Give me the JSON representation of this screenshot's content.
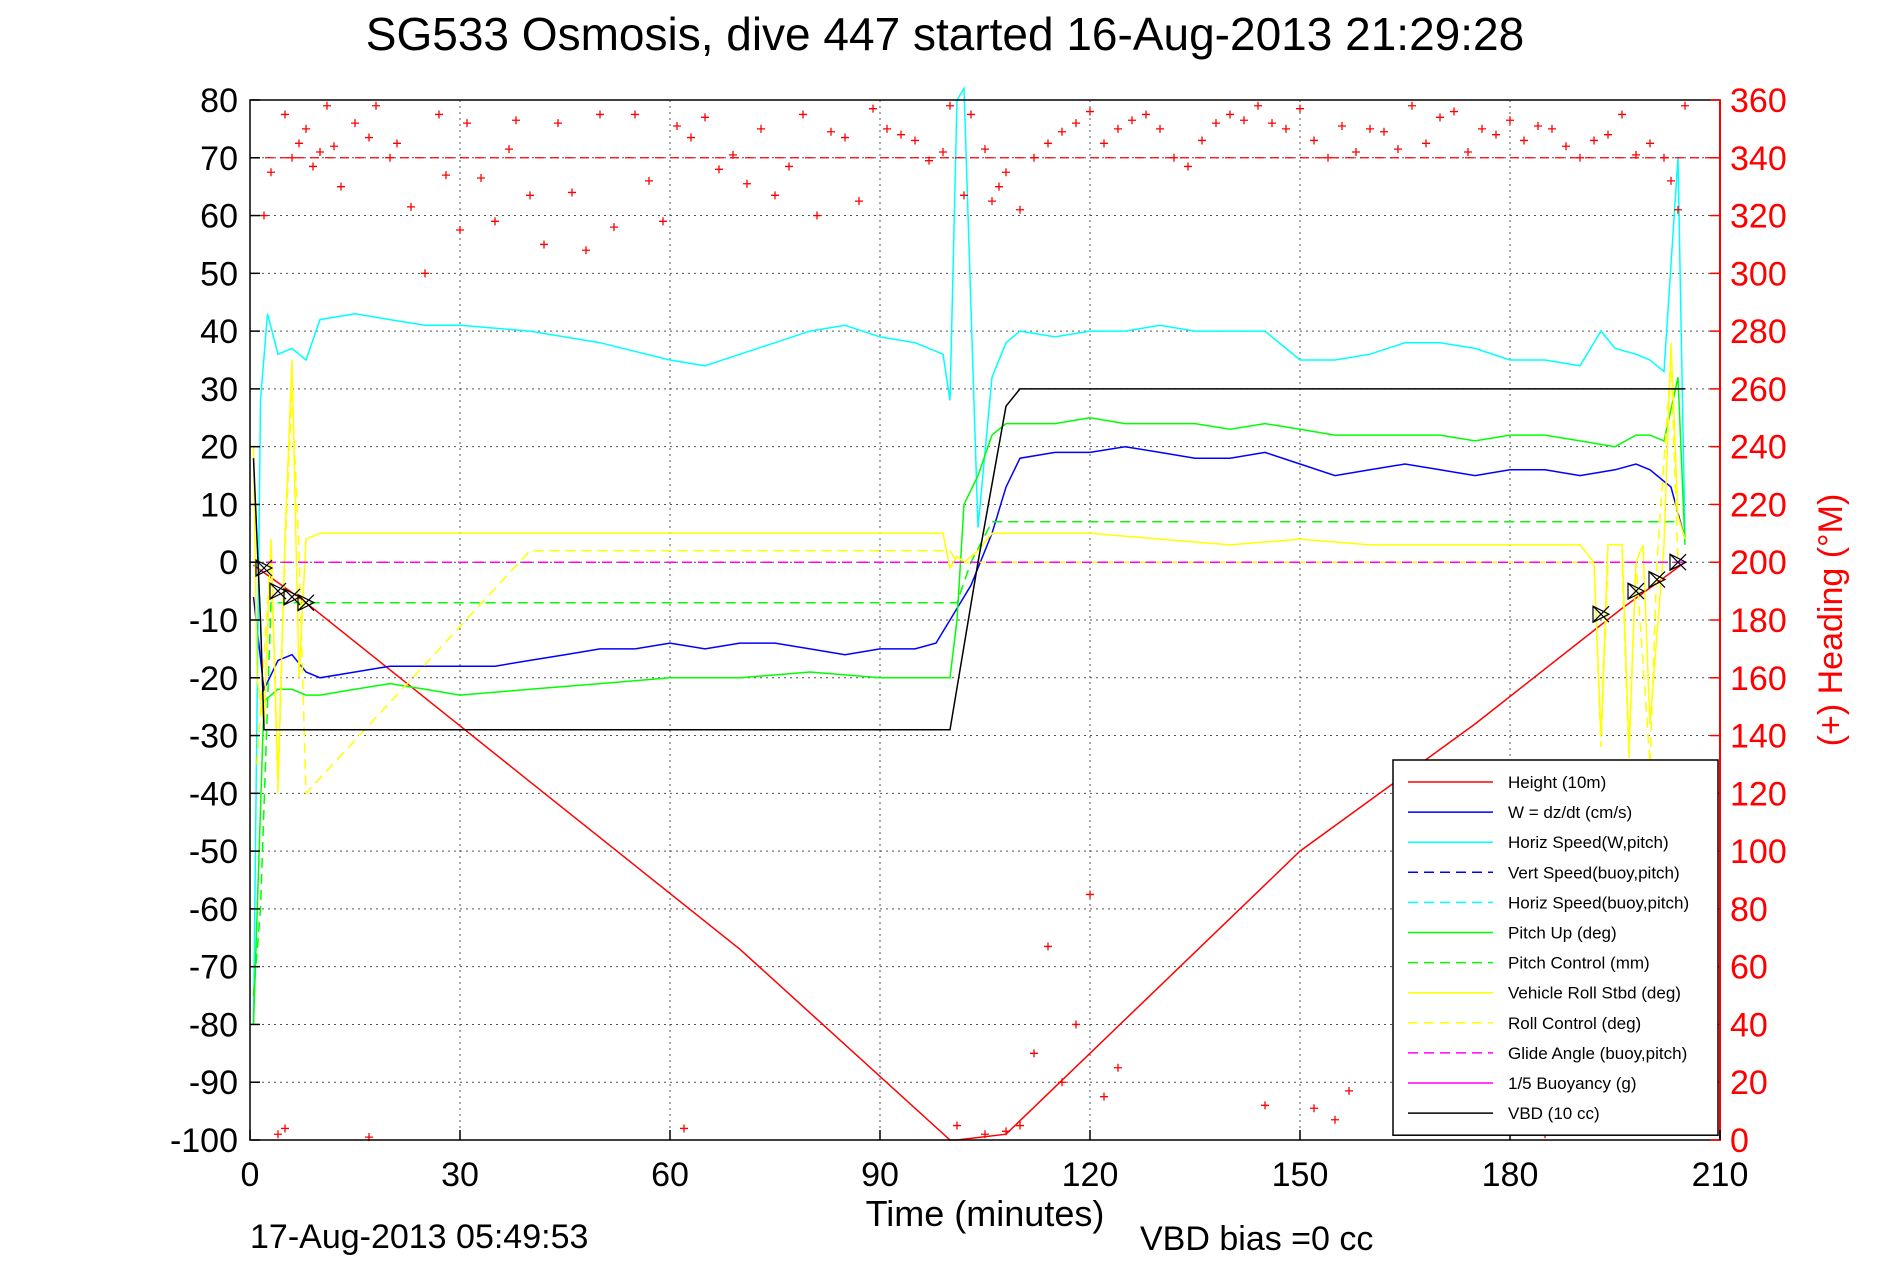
{
  "chart_data": {
    "type": "line",
    "title": "SG533 Osmosis, dive 447 started 16-Aug-2013 21:29:28",
    "xlabel": "Time (minutes)",
    "ylabel_right": "(+) Heading (°M)",
    "footer_left": "17-Aug-2013 05:49:53",
    "footer_right": "VBD bias =0 cc",
    "xlim": [
      0,
      210
    ],
    "ylim": [
      -100,
      80
    ],
    "ylim_right": [
      0,
      360
    ],
    "x_ticks": [
      "0",
      "30",
      "60",
      "90",
      "120",
      "150",
      "180",
      "210"
    ],
    "y_ticks": [
      "-100",
      "-90",
      "-80",
      "-70",
      "-60",
      "-50",
      "-40",
      "-30",
      "-20",
      "-10",
      "0",
      "10",
      "20",
      "30",
      "40",
      "50",
      "60",
      "70",
      "80"
    ],
    "y_right_ticks": [
      "0",
      "20",
      "40",
      "60",
      "80",
      "100",
      "120",
      "140",
      "160",
      "180",
      "200",
      "220",
      "240",
      "260",
      "280",
      "300",
      "320",
      "340",
      "360"
    ],
    "grid": true,
    "legend_position": "lower-right",
    "colors": {
      "right_axis": "#ff0000",
      "grid": "#555555"
    },
    "series": [
      {
        "name": "Height (10m)",
        "color": "#ff0000",
        "style": "solid",
        "x": [
          0.5,
          8,
          40,
          70,
          100,
          101,
          108,
          150,
          175,
          196,
          205
        ],
        "y": [
          -0.5,
          -7,
          -38,
          -67,
          -100,
          -100,
          -99,
          -50,
          -28,
          -8,
          0
        ]
      },
      {
        "name": "W = dz/dt (cm/s)",
        "color": "#0000ff",
        "style": "solid",
        "x": [
          0.5,
          2,
          4,
          6,
          8,
          10,
          15,
          20,
          25,
          30,
          35,
          40,
          45,
          50,
          55,
          60,
          65,
          70,
          75,
          80,
          85,
          90,
          95,
          98,
          100,
          103,
          106,
          108,
          110,
          115,
          120,
          125,
          130,
          135,
          140,
          145,
          150,
          155,
          160,
          165,
          170,
          175,
          180,
          185,
          190,
          195,
          198,
          200,
          203,
          205
        ],
        "y": [
          -6,
          -22,
          -17,
          -16,
          -19,
          -20,
          -19,
          -18,
          -18,
          -18,
          -18,
          -17,
          -16,
          -15,
          -15,
          -14,
          -15,
          -14,
          -14,
          -15,
          -16,
          -15,
          -15,
          -14,
          -10,
          -4,
          5,
          13,
          18,
          19,
          19,
          20,
          19,
          18,
          18,
          19,
          17,
          15,
          16,
          17,
          16,
          15,
          16,
          16,
          15,
          16,
          17,
          16,
          13,
          4
        ]
      },
      {
        "name": "Horiz Speed(W,pitch)",
        "color": "#00ffff",
        "style": "solid",
        "x": [
          0.5,
          1.5,
          2.5,
          4,
          6,
          8,
          10,
          15,
          20,
          25,
          30,
          40,
          50,
          60,
          65,
          70,
          75,
          80,
          85,
          90,
          95,
          99,
          100,
          101,
          102,
          104,
          106,
          108,
          110,
          115,
          120,
          125,
          130,
          135,
          140,
          145,
          150,
          155,
          160,
          165,
          170,
          175,
          180,
          185,
          190,
          193,
          195,
          198,
          200,
          202,
          204,
          205
        ],
        "y": [
          -80,
          28,
          43,
          36,
          37,
          35,
          42,
          43,
          42,
          41,
          41,
          40,
          38,
          35,
          34,
          36,
          38,
          40,
          41,
          39,
          38,
          36,
          28,
          80,
          82,
          6,
          32,
          38,
          40,
          39,
          40,
          40,
          41,
          40,
          40,
          40,
          35,
          35,
          36,
          38,
          38,
          37,
          35,
          35,
          34,
          40,
          37,
          36,
          35,
          33,
          70,
          4
        ]
      },
      {
        "name": "Vert Speed(buoy,pitch)",
        "color": "#0000ff",
        "style": "dashed",
        "x": [],
        "y": []
      },
      {
        "name": "Horiz Speed(buoy,pitch)",
        "color": "#00ffff",
        "style": "dashed",
        "x": [],
        "y": []
      },
      {
        "name": "Pitch Up (deg)",
        "color": "#00ff00",
        "style": "solid",
        "x": [
          0.5,
          2,
          4,
          6,
          8,
          10,
          15,
          20,
          25,
          30,
          40,
          50,
          60,
          70,
          80,
          90,
          95,
          98,
          100,
          101,
          102,
          104,
          106,
          108,
          110,
          115,
          120,
          125,
          130,
          135,
          140,
          145,
          150,
          155,
          160,
          165,
          170,
          175,
          180,
          185,
          190,
          195,
          198,
          200,
          202,
          204,
          205
        ],
        "y": [
          -80,
          -24,
          -22,
          -22,
          -23,
          -23,
          -22,
          -21,
          -22,
          -23,
          -22,
          -21,
          -20,
          -20,
          -19,
          -20,
          -20,
          -20,
          -20,
          -10,
          10,
          15,
          22,
          24,
          24,
          24,
          25,
          24,
          24,
          24,
          23,
          24,
          23,
          22,
          22,
          22,
          22,
          21,
          22,
          22,
          21,
          20,
          22,
          22,
          21,
          32,
          3
        ]
      },
      {
        "name": "Pitch Control (mm)",
        "color": "#00ff00",
        "style": "dashed",
        "x": [
          0.5,
          1.5,
          3,
          5,
          10,
          20,
          40,
          60,
          80,
          100,
          101,
          103,
          106,
          110,
          130,
          150,
          170,
          190,
          204
        ],
        "y": [
          -75,
          -60,
          -7,
          -7,
          -7,
          -7,
          -7,
          -7,
          -7,
          -7,
          -7,
          0,
          7,
          7,
          7,
          7,
          7,
          7,
          7
        ]
      },
      {
        "name": "Vehicle Roll Stbd (deg)",
        "color": "#ffff00",
        "style": "solid",
        "x": [
          0.5,
          1,
          2,
          3,
          4,
          5,
          6,
          7,
          8,
          10,
          15,
          20,
          30,
          40,
          50,
          60,
          70,
          80,
          90,
          99,
          100,
          101,
          102,
          104,
          106,
          110,
          120,
          130,
          140,
          150,
          160,
          170,
          180,
          190,
          192,
          193,
          194,
          196,
          197,
          198,
          199,
          200,
          202,
          203,
          204,
          205
        ],
        "y": [
          20,
          -20,
          -28,
          4,
          -38,
          4,
          35,
          -20,
          4,
          5,
          5,
          5,
          5,
          5,
          5,
          5,
          5,
          5,
          5,
          5,
          -1,
          1,
          0,
          2,
          5,
          5,
          5,
          4,
          3,
          4,
          3,
          3,
          3,
          3,
          0,
          -30,
          3,
          3,
          -32,
          0,
          3,
          -28,
          3,
          38,
          8,
          4
        ]
      },
      {
        "name": "Roll Control (deg)",
        "color": "#ffff00",
        "style": "dashed",
        "x": [
          1,
          3,
          4,
          5,
          6,
          7,
          8,
          40,
          100,
          101,
          102,
          103,
          150,
          192,
          193,
          194,
          196,
          197,
          198,
          200,
          201,
          203,
          204
        ],
        "y": [
          -35,
          2,
          -40,
          2,
          30,
          2,
          -40,
          2,
          2,
          0,
          0,
          0,
          0,
          0,
          -32,
          0,
          0,
          -34,
          0,
          -35,
          0,
          35,
          0
        ]
      },
      {
        "name": "Glide Angle (buoy,pitch)",
        "color": "#ff00ff",
        "style": "dashed",
        "x": [
          0,
          205
        ],
        "y": [
          0,
          0
        ]
      },
      {
        "name": "1/5 Buoyancy (g)",
        "color": "#ff00ff",
        "style": "solid",
        "x": [],
        "y": []
      },
      {
        "name": "VBD (10 cc)",
        "color": "#000000",
        "style": "solid",
        "x": [
          0.5,
          1.5,
          2,
          5,
          20,
          60,
          98,
          100,
          104,
          108,
          110,
          130,
          205
        ],
        "y": [
          18,
          -10,
          -29,
          -29,
          -29,
          -29,
          -29,
          -29,
          0,
          27,
          30,
          30,
          30
        ]
      }
    ],
    "heading_series": {
      "name": "(+) Heading (°M)",
      "color": "#ff0000",
      "marker": "+",
      "axis": "right",
      "mean_heading": 340,
      "x": [
        2,
        3,
        5,
        6,
        7,
        8,
        9,
        10,
        11,
        12,
        13,
        15,
        17,
        18,
        20,
        21,
        23,
        25,
        27,
        28,
        30,
        31,
        33,
        35,
        37,
        38,
        40,
        42,
        44,
        46,
        48,
        50,
        52,
        55,
        57,
        59,
        61,
        63,
        65,
        67,
        69,
        71,
        73,
        75,
        77,
        79,
        81,
        83,
        85,
        87,
        89,
        91,
        93,
        95,
        97,
        99,
        100,
        102,
        103,
        105,
        106,
        107,
        108,
        110,
        112,
        114,
        116,
        118,
        120,
        122,
        124,
        126,
        128,
        130,
        132,
        134,
        136,
        138,
        140,
        142,
        144,
        146,
        148,
        150,
        152,
        154,
        156,
        158,
        160,
        162,
        164,
        166,
        168,
        170,
        172,
        174,
        176,
        178,
        180,
        182,
        184,
        186,
        188,
        190,
        192,
        194,
        196,
        198,
        200,
        202,
        203,
        204,
        205,
        101,
        105,
        108,
        110,
        112,
        114,
        116,
        118,
        120,
        122,
        124,
        145,
        152,
        155,
        157,
        4,
        5,
        17,
        62,
        185,
        190,
        196
      ],
      "y": [
        320,
        335,
        355,
        340,
        345,
        350,
        337,
        342,
        358,
        344,
        330,
        352,
        347,
        358,
        340,
        345,
        323,
        300,
        355,
        334,
        315,
        352,
        333,
        318,
        343,
        353,
        327,
        310,
        352,
        328,
        308,
        355,
        316,
        355,
        332,
        318,
        351,
        347,
        354,
        336,
        341,
        331,
        350,
        327,
        337,
        355,
        320,
        349,
        347,
        325,
        357,
        350,
        348,
        346,
        339,
        342,
        358,
        327,
        355,
        343,
        325,
        330,
        335,
        322,
        340,
        345,
        349,
        352,
        356,
        345,
        350,
        353,
        355,
        350,
        340,
        337,
        346,
        352,
        355,
        353,
        358,
        352,
        350,
        357,
        346,
        340,
        351,
        342,
        350,
        349,
        343,
        358,
        345,
        354,
        356,
        342,
        350,
        348,
        353,
        346,
        351,
        350,
        344,
        340,
        346,
        348,
        355,
        341,
        345,
        340,
        332,
        322,
        358,
        5,
        2,
        3,
        5,
        30,
        67,
        20,
        40,
        85,
        15,
        25,
        12,
        11,
        7,
        17,
        2,
        4,
        1,
        4,
        2,
        4,
        3
      ]
    },
    "triangle_markers": {
      "color": "#000000",
      "x": [
        2,
        4,
        6,
        8,
        193,
        198,
        201,
        204
      ],
      "y": [
        -1,
        -5,
        -6,
        -7,
        -9,
        -5,
        -3,
        0
      ]
    },
    "legend": [
      "Height (10m)",
      "W = dz/dt (cm/s)",
      "Horiz Speed(W,pitch)",
      "Vert Speed(buoy,pitch)",
      "Horiz Speed(buoy,pitch)",
      "Pitch Up (deg)",
      "Pitch Control (mm)",
      "Vehicle Roll Stbd (deg)",
      "Roll Control (deg)",
      "Glide Angle (buoy,pitch)",
      "1/5 Buoyancy (g)",
      "VBD (10 cc)"
    ]
  }
}
